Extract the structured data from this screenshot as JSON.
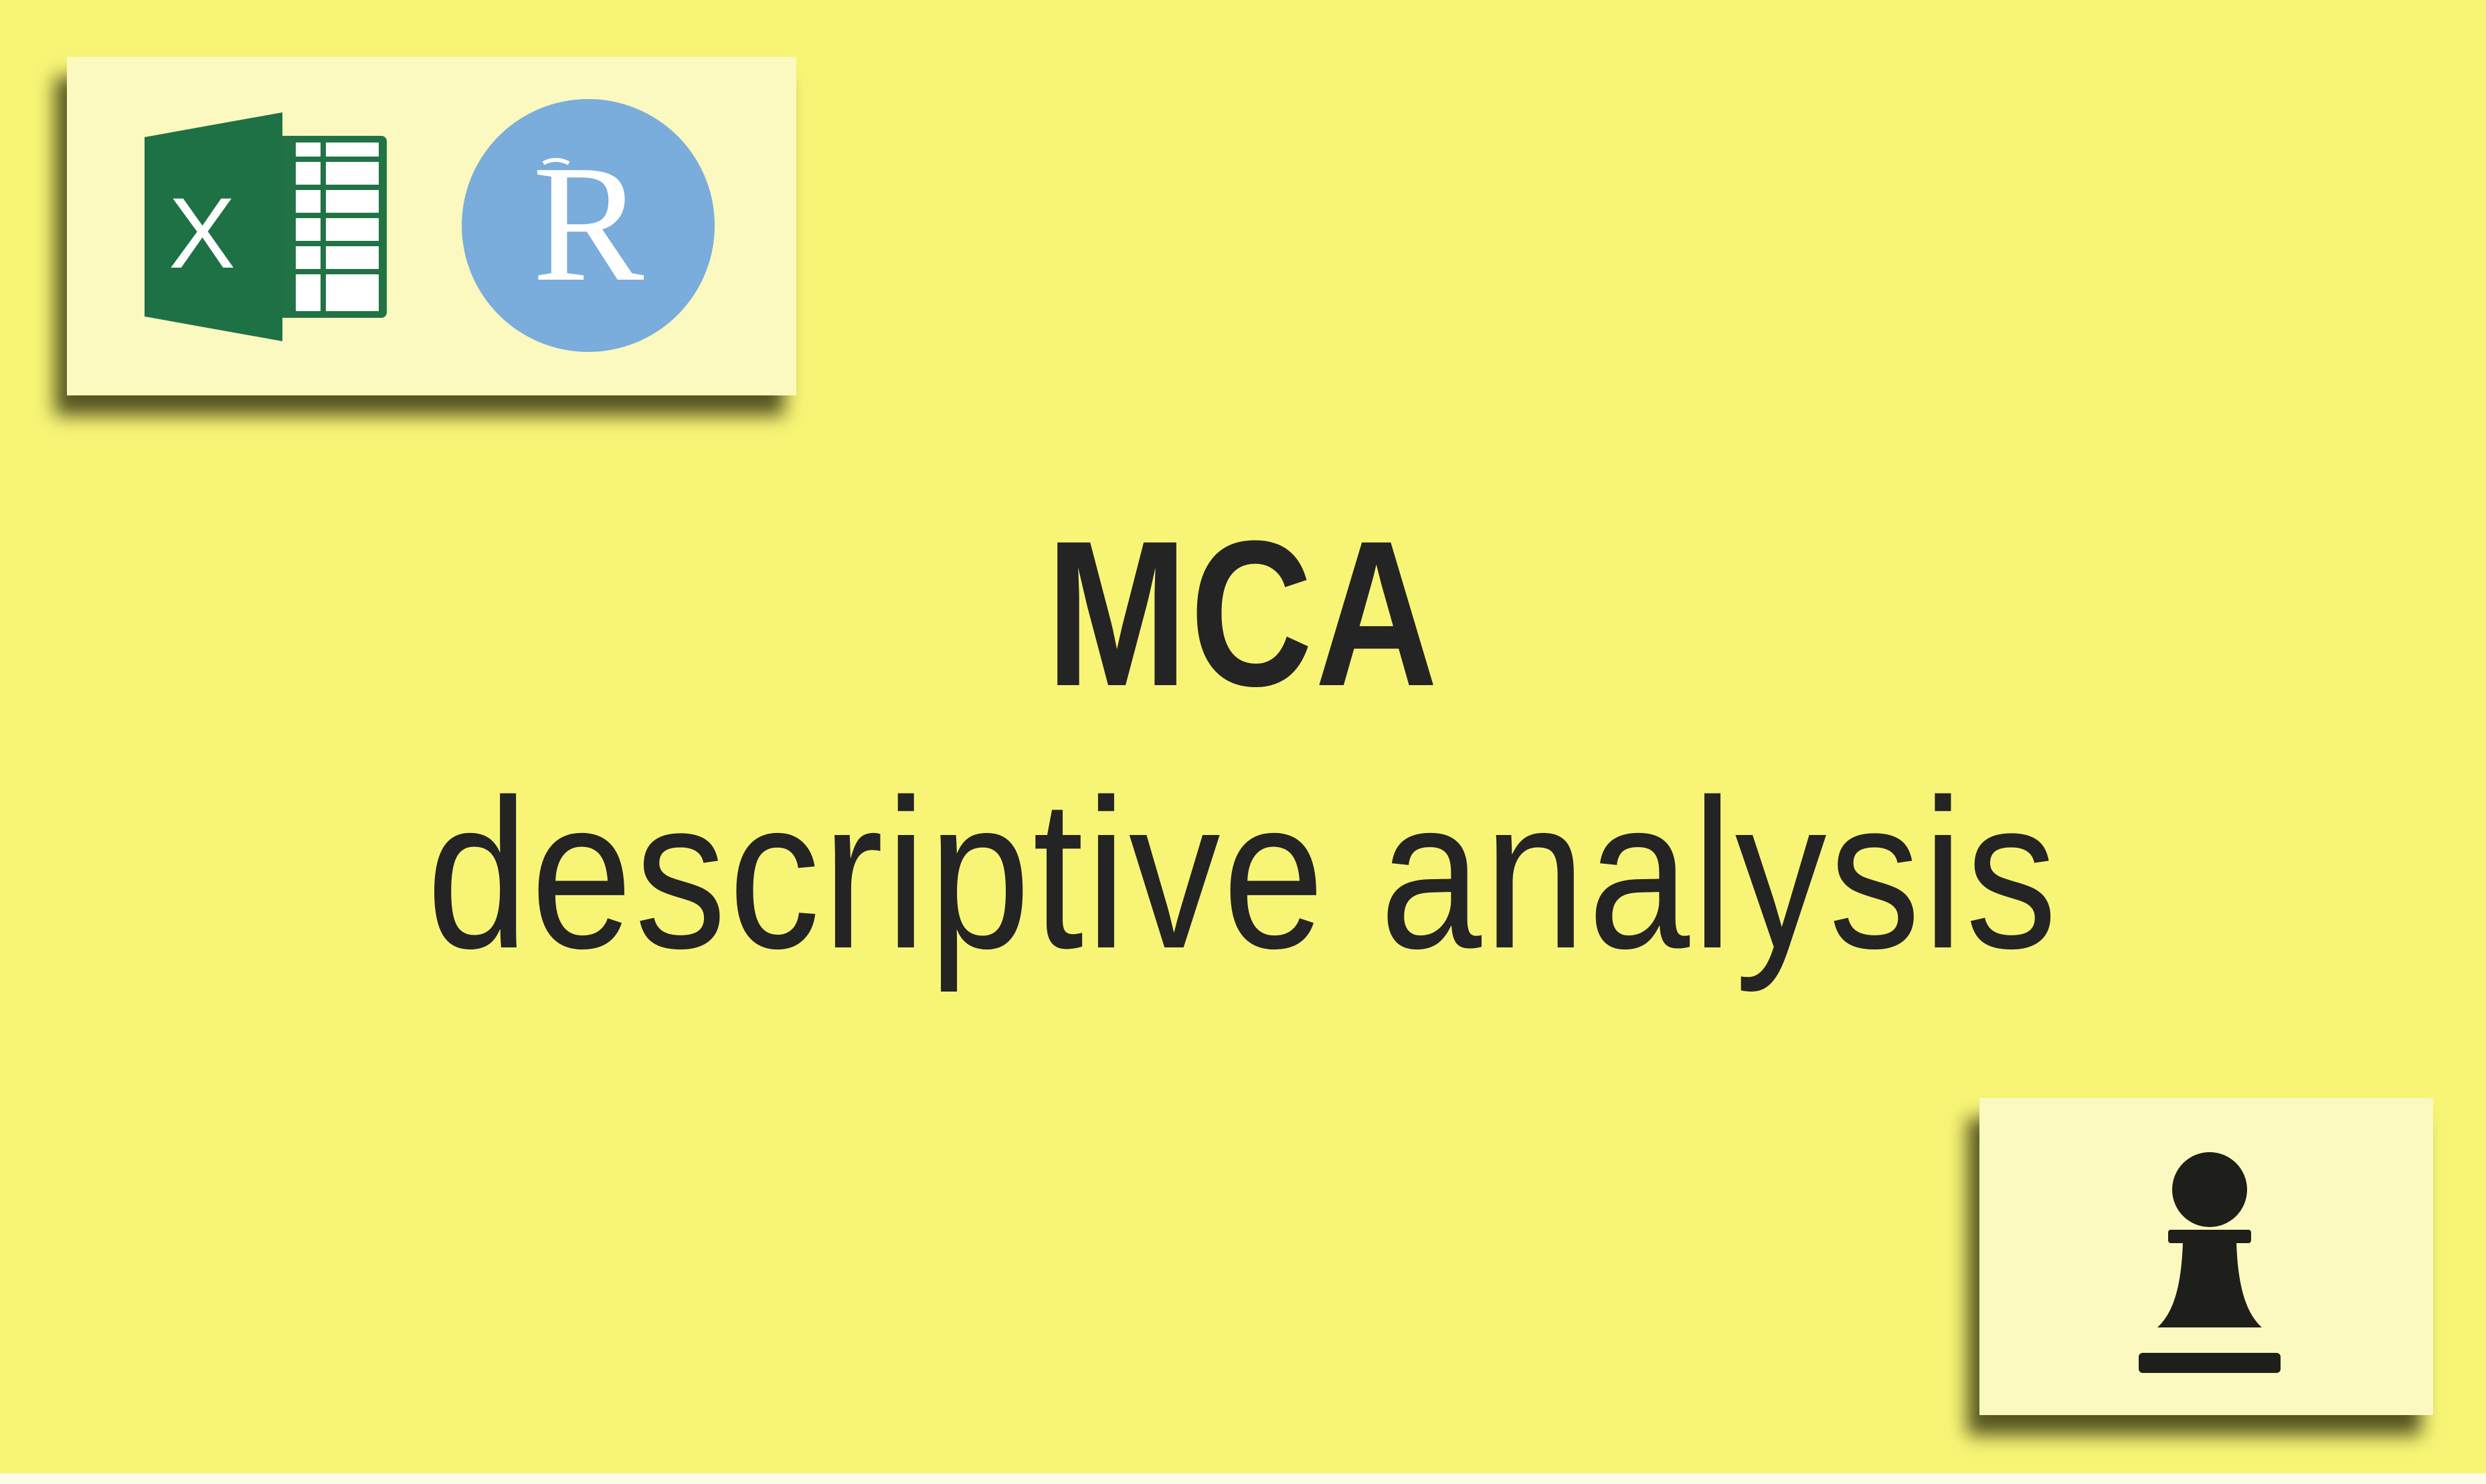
{
  "heading": {
    "title": "MCA",
    "subtitle": "descriptive analysis"
  },
  "logos": {
    "spreadsheet_letter": "X",
    "r_letter": "R",
    "icons": [
      "excel-icon",
      "r-language-icon",
      "chess-pawn-icon"
    ]
  },
  "colors": {
    "background": "#f8f576",
    "card": "#fbf9bf",
    "text": "#242424",
    "excel_green": "#217346",
    "r_blue": "#7aacdc",
    "pawn": "#1e1e1a"
  }
}
